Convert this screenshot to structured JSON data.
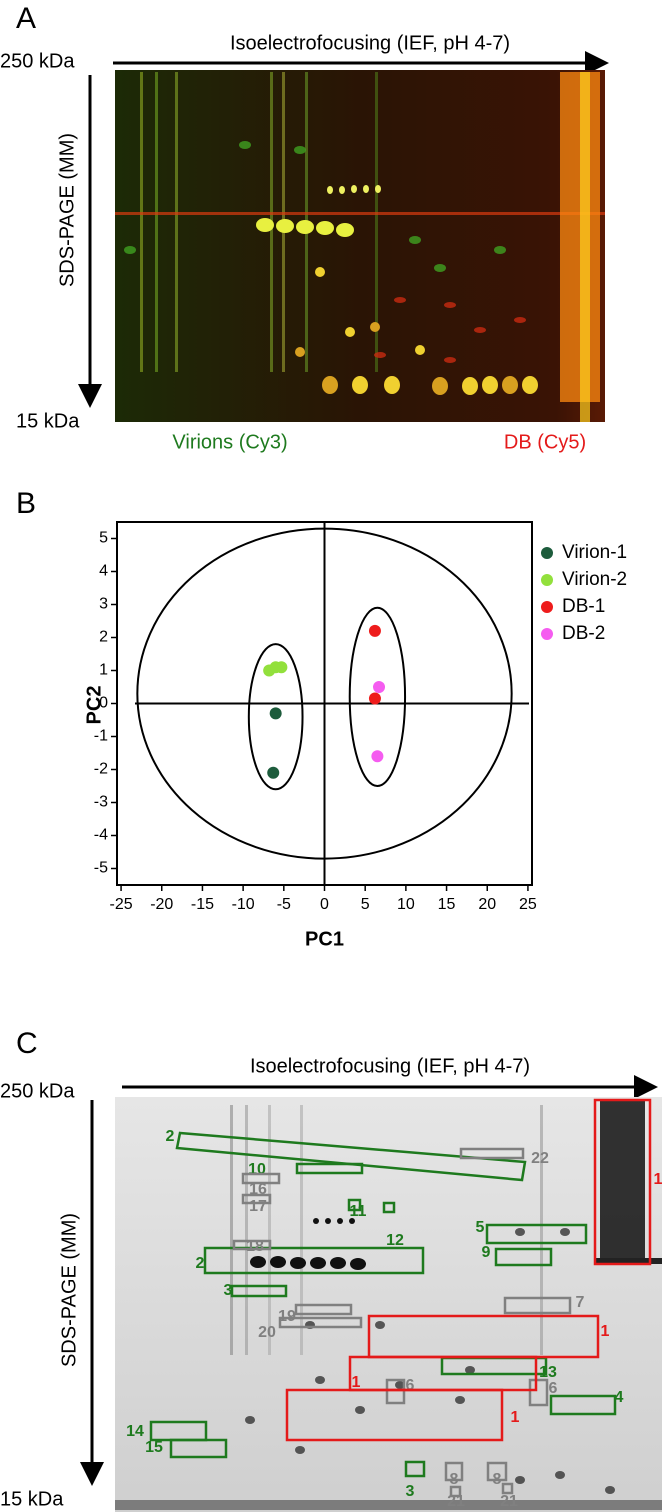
{
  "panel_a": {
    "letter": "A",
    "axis_top": "Isoelectrofocusing (IEF, pH 4-7)",
    "mass_top": "250 kDa",
    "axis_left": "SDS-PAGE (MM)",
    "mass_bottom": "15 kDa",
    "channel_left": "Virions  (Cy3)",
    "channel_right": "DB (Cy5)"
  },
  "chart_data": {
    "type": "scatter",
    "letter": "B",
    "x_label": "PC1",
    "y_label": "PC2",
    "xlim": [
      -25.5,
      25.5
    ],
    "ylim": [
      -5.5,
      5.5
    ],
    "xticks": [
      -25,
      -20,
      -15,
      -10,
      -5,
      0,
      5,
      10,
      15,
      20,
      25
    ],
    "yticks": [
      -5,
      -4,
      -3,
      -2,
      -1,
      0,
      1,
      2,
      3,
      4,
      5
    ],
    "series": [
      {
        "name": "Virion-1",
        "color": "#1d5c3c",
        "x": [
          -6.0,
          -6.3
        ],
        "values": [
          -0.3,
          -2.1
        ]
      },
      {
        "name": "Virion-2",
        "color": "#92e03c",
        "x": [
          -6.8,
          -6.0,
          -5.3
        ],
        "values": [
          1.0,
          1.1,
          1.1
        ]
      },
      {
        "name": "DB-1",
        "color": "#ee1c1c",
        "x": [
          6.2,
          6.2
        ],
        "values": [
          2.2,
          0.15
        ]
      },
      {
        "name": "DB-2",
        "color": "#f55cf0",
        "x": [
          6.7,
          6.5
        ],
        "values": [
          0.5,
          -1.6
        ]
      }
    ]
  },
  "panel_c": {
    "letter": "C",
    "axis_top": "Isoelectrofocusing (IEF, pH 4-7)",
    "mass_top": "250 kDa",
    "axis_left": "SDS-PAGE (MM)",
    "mass_bottom": "15 kDa",
    "spot_labels": [
      "2",
      "10",
      "11",
      "12",
      "5",
      "9",
      "2",
      "3",
      "13",
      "4",
      "14",
      "15",
      "3",
      "22",
      "16",
      "17",
      "18",
      "7",
      "19",
      "20",
      "6",
      "6",
      "8",
      "8",
      "21",
      "21",
      "1",
      "1",
      "1",
      "1"
    ]
  }
}
